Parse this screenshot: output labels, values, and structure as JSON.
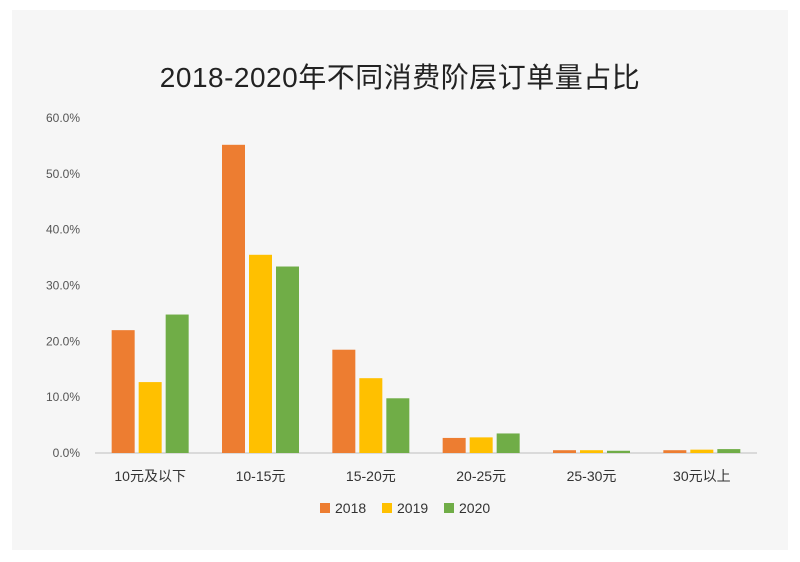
{
  "chart_data": {
    "type": "bar",
    "title": "2018-2020年不同消费阶层订单量占比",
    "categories": [
      "10元及以下",
      "10-15元",
      "15-20元",
      "20-25元",
      "25-30元",
      "30元以上"
    ],
    "series": [
      {
        "name": "2018",
        "color": "#ED7D31",
        "values": [
          22.0,
          55.2,
          18.5,
          2.7,
          0.5,
          0.5
        ]
      },
      {
        "name": "2019",
        "color": "#FFC000",
        "values": [
          12.7,
          35.5,
          13.4,
          2.8,
          0.5,
          0.6
        ]
      },
      {
        "name": "2020",
        "color": "#70AD47",
        "values": [
          24.8,
          33.4,
          9.8,
          3.5,
          0.4,
          0.7
        ]
      }
    ],
    "ylim": [
      0,
      60
    ],
    "yticks": [
      "0.0%",
      "10.0%",
      "20.0%",
      "30.0%",
      "40.0%",
      "50.0%",
      "60.0%"
    ],
    "grid": false,
    "legend_position": "bottom"
  }
}
